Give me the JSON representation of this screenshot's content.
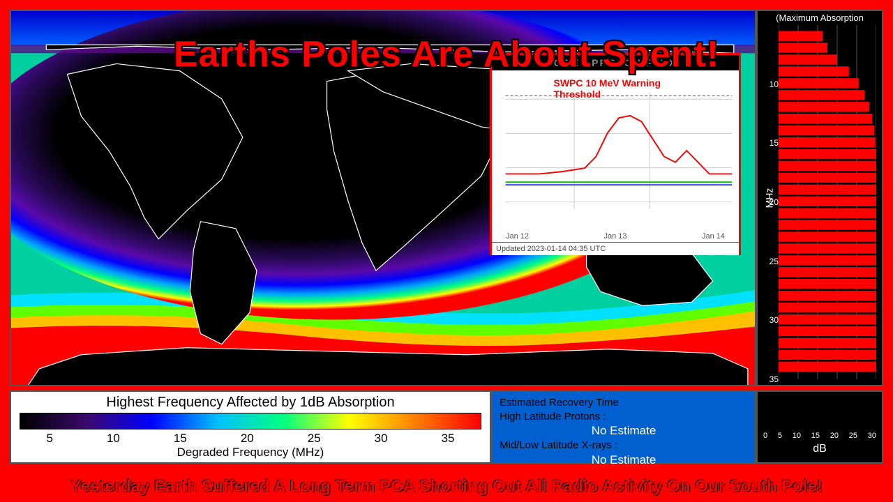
{
  "headline": {
    "text": "Earths Poles Are About Spent!",
    "color": "#ff0000",
    "fontsize": 52
  },
  "bottom_caption": {
    "text": "Yesterday Earth Suffered A Long Term PCA Shorting Out All Radio Activity On Our South Pole!",
    "color": "#ff0000",
    "fontsize": 24
  },
  "map": {
    "gradient_colors": [
      "#000000",
      "#3a0a6a",
      "#5a0a9a",
      "#0000ff",
      "#0060ff",
      "#00c0ff",
      "#00ff80",
      "#80ff00",
      "#ffff00",
      "#ff8000",
      "#ff0000"
    ],
    "blue_band_top": "#0000e0",
    "blue_band_color": "#0040ff",
    "red_band_bottom": "#ff0000",
    "continent_outline": "#ffffff",
    "continent_fill": "#000000"
  },
  "inset_chart": {
    "title": "GOES PROTON FLUX",
    "threshold_label": "SWPC 10 MeV Warning Threshold",
    "threshold_color": "#ff0000",
    "x_labels": [
      "Jan 12",
      "Jan 13",
      "Jan 14"
    ],
    "footer": "Updated 2023-01-14 04:35 UTC",
    "background": "#ffffff",
    "border_color": "#ff0000",
    "series": {
      "red": {
        "color": "#ff0000",
        "points": [
          [
            0,
            0.3
          ],
          [
            0.15,
            0.3
          ],
          [
            0.25,
            0.32
          ],
          [
            0.35,
            0.35
          ],
          [
            0.4,
            0.45
          ],
          [
            0.45,
            0.65
          ],
          [
            0.5,
            0.78
          ],
          [
            0.55,
            0.8
          ],
          [
            0.6,
            0.75
          ],
          [
            0.65,
            0.6
          ],
          [
            0.7,
            0.45
          ],
          [
            0.75,
            0.4
          ],
          [
            0.8,
            0.5
          ],
          [
            0.85,
            0.4
          ],
          [
            0.9,
            0.3
          ],
          [
            1,
            0.3
          ]
        ]
      },
      "green": {
        "color": "#00c000",
        "y": 0.3
      },
      "blue": {
        "color": "#0000ff",
        "y": 0.28
      }
    }
  },
  "absorption_panel": {
    "title": "(Maximum Absorption",
    "ylabel": "MHz",
    "yticks": [
      10,
      15,
      20,
      25,
      30,
      35
    ],
    "ylim": [
      5,
      35
    ],
    "bar_color": "#ff0000",
    "background": "#000000",
    "bars": [
      {
        "y": 6,
        "w": 0.45
      },
      {
        "y": 7,
        "w": 0.5
      },
      {
        "y": 8,
        "w": 0.6
      },
      {
        "y": 9,
        "w": 0.72
      },
      {
        "y": 10,
        "w": 0.82
      },
      {
        "y": 11,
        "w": 0.88
      },
      {
        "y": 12,
        "w": 0.93
      },
      {
        "y": 13,
        "w": 0.96
      },
      {
        "y": 14,
        "w": 0.98
      },
      {
        "y": 15,
        "w": 0.99
      },
      {
        "y": 16,
        "w": 1.0
      },
      {
        "y": 17,
        "w": 1.0
      },
      {
        "y": 18,
        "w": 1.0
      },
      {
        "y": 19,
        "w": 1.0
      },
      {
        "y": 20,
        "w": 1.0
      },
      {
        "y": 21,
        "w": 1.0
      },
      {
        "y": 22,
        "w": 1.0
      },
      {
        "y": 23,
        "w": 1.0
      },
      {
        "y": 24,
        "w": 1.0
      },
      {
        "y": 25,
        "w": 1.0
      },
      {
        "y": 26,
        "w": 1.0
      },
      {
        "y": 27,
        "w": 1.0
      },
      {
        "y": 28,
        "w": 1.0
      },
      {
        "y": 29,
        "w": 1.0
      },
      {
        "y": 30,
        "w": 1.0
      },
      {
        "y": 31,
        "w": 1.0
      },
      {
        "y": 32,
        "w": 1.0
      },
      {
        "y": 33,
        "w": 1.0
      },
      {
        "y": 34,
        "w": 1.0
      }
    ]
  },
  "legend": {
    "title": "Highest Frequency Affected by 1dB Absorption",
    "ticks": [
      5,
      10,
      15,
      20,
      25,
      30,
      35
    ],
    "axis_label": "Degraded Frequency (MHz)",
    "gradient": [
      "#000000",
      "#3a0a6a",
      "#0000ff",
      "#00c0ff",
      "#00ff80",
      "#ffff00",
      "#ff8000",
      "#ff0000"
    ]
  },
  "recovery": {
    "title": "Estimated Recovery Time",
    "rows": [
      {
        "label": "High Latitude Protons :",
        "value": "No Estimate"
      },
      {
        "label": "Mid/Low Latitude X-rays :",
        "value": "No Estimate"
      }
    ],
    "background": "#0060d0",
    "value_color": "#ffffff"
  },
  "db_panel": {
    "xticks": [
      0,
      5,
      10,
      15,
      20,
      25,
      30
    ],
    "label": "dB"
  }
}
